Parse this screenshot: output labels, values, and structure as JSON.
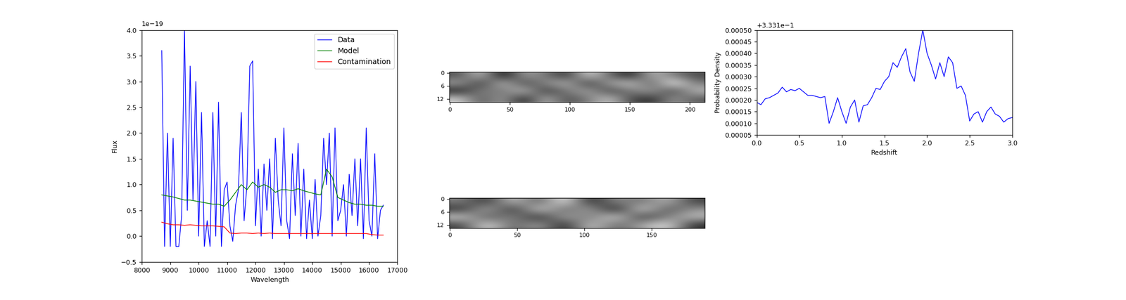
{
  "chart_data": [
    {
      "type": "line",
      "x_label": "Wavelength",
      "y_label": "Flux",
      "annotations": [
        "1e−19"
      ],
      "legend": "upper right",
      "xlim": [
        8000,
        17000
      ],
      "xticks": [
        8000,
        9000,
        10000,
        11000,
        12000,
        13000,
        14000,
        15000,
        16000,
        17000
      ],
      "ylim": [
        -0.5,
        4.0
      ],
      "yticks": [
        {
          "value": -0.5,
          "label": "−0.5"
        },
        0.0,
        0.5,
        1.0,
        1.5,
        2.0,
        2.5,
        3.0,
        3.5,
        4.0
      ],
      "series": [
        {
          "name": "Data",
          "color": "#0000ff",
          "x": [
            8700,
            8800,
            8900,
            9000,
            9100,
            9200,
            9300,
            9400,
            9500,
            9600,
            9700,
            9800,
            9900,
            10000,
            10100,
            10200,
            10300,
            10400,
            10500,
            10600,
            10700,
            10800,
            10900,
            11000,
            11100,
            11200,
            11300,
            11400,
            11500,
            11600,
            11700,
            11800,
            11900,
            12000,
            12100,
            12200,
            12300,
            12400,
            12500,
            12600,
            12700,
            12800,
            12900,
            13000,
            13100,
            13200,
            13300,
            13400,
            13500,
            13600,
            13700,
            13800,
            13900,
            14000,
            14100,
            14200,
            14300,
            14400,
            14500,
            14600,
            14700,
            14800,
            14900,
            15000,
            15100,
            15200,
            15300,
            15400,
            15500,
            15600,
            15700,
            15800,
            15900,
            16000,
            16100,
            16200,
            16300,
            16400,
            16500
          ],
          "values": [
            3.6,
            -0.2,
            2.0,
            -0.2,
            1.9,
            -0.2,
            -0.2,
            0.4,
            4.0,
            0.5,
            3.3,
            0.7,
            3.0,
            0.0,
            2.4,
            -0.2,
            0.3,
            -0.2,
            2.4,
            0.0,
            2.6,
            -0.2,
            0.9,
            1.05,
            0.2,
            -0.1,
            0.6,
            0.9,
            2.4,
            0.3,
            1.0,
            3.3,
            3.4,
            0.2,
            1.3,
            0.0,
            1.4,
            0.5,
            1.5,
            -0.05,
            1.9,
            0.7,
            0.2,
            2.1,
            0.3,
            -0.05,
            1.6,
            0.4,
            1.8,
            0.0,
            1.3,
            -0.05,
            0.7,
            -0.05,
            1.1,
            0.0,
            0.4,
            1.9,
            1.0,
            2.0,
            0.0,
            2.1,
            0.3,
            0.5,
            1.0,
            0.0,
            1.2,
            0.4,
            1.5,
            0.2,
            1.5,
            -0.05,
            2.1,
            0.3,
            0.0,
            1.6,
            -0.05,
            0.5,
            0.6
          ]
        },
        {
          "name": "Model",
          "color": "#008000",
          "x": [
            8700,
            8900,
            9100,
            9300,
            9500,
            9700,
            9900,
            10100,
            10300,
            10500,
            10700,
            10900,
            11100,
            11300,
            11500,
            11700,
            11900,
            12100,
            12300,
            12500,
            12700,
            12900,
            13100,
            13300,
            13500,
            13700,
            13900,
            14100,
            14300,
            14500,
            14700,
            14900,
            15100,
            15300,
            15500,
            15700,
            15900,
            16100,
            16300,
            16500
          ],
          "values": [
            0.8,
            0.78,
            0.76,
            0.73,
            0.7,
            0.7,
            0.68,
            0.66,
            0.64,
            0.62,
            0.62,
            0.58,
            0.7,
            0.85,
            1.0,
            0.9,
            1.05,
            0.95,
            1.0,
            0.95,
            0.85,
            0.9,
            0.9,
            0.88,
            0.92,
            0.88,
            0.85,
            0.82,
            0.8,
            1.3,
            1.15,
            0.75,
            0.7,
            0.65,
            0.62,
            0.62,
            0.6,
            0.6,
            0.58,
            0.58
          ]
        },
        {
          "name": "Contamination",
          "color": "#ff0000",
          "x": [
            8700,
            8900,
            9100,
            9300,
            9500,
            9700,
            9900,
            10100,
            10300,
            10500,
            10700,
            10900,
            11100,
            11300,
            11500,
            11700,
            11900,
            12100,
            12300,
            12500,
            12700,
            12900,
            13100,
            13300,
            13500,
            13700,
            13900,
            14100,
            14300,
            14500,
            14700,
            14900,
            15100,
            15300,
            15500,
            15700,
            15900,
            16100,
            16300,
            16500
          ],
          "values": [
            0.27,
            0.24,
            0.22,
            0.22,
            0.21,
            0.22,
            0.21,
            0.2,
            0.2,
            0.2,
            0.19,
            0.18,
            0.06,
            0.05,
            0.06,
            0.06,
            0.05,
            0.06,
            0.05,
            0.06,
            0.05,
            0.05,
            0.05,
            0.05,
            0.05,
            0.05,
            0.05,
            0.05,
            0.05,
            0.05,
            0.05,
            0.05,
            0.05,
            0.05,
            0.05,
            0.05,
            0.05,
            0.03,
            0.02,
            0.02
          ]
        }
      ]
    },
    {
      "type": "image",
      "xlim": [
        -0.5,
        212.5
      ],
      "xticks": [
        0,
        50,
        100,
        150,
        200
      ],
      "ylim": [
        13.5,
        -0.5
      ],
      "yticks": [
        0,
        6,
        12
      ],
      "cells": [
        [
          0.45,
          0.6,
          0.35,
          0.55,
          0.5,
          0.4,
          0.62,
          0.48,
          0.38,
          0.58,
          0.5,
          0.44
        ],
        [
          0.55,
          0.4,
          0.6,
          0.42,
          0.52,
          0.58,
          0.4,
          0.55,
          0.6,
          0.45,
          0.66,
          0.5
        ],
        [
          0.38,
          0.52,
          0.48,
          0.6,
          0.4,
          0.5,
          0.56,
          0.42,
          0.5,
          0.55,
          0.42,
          0.58
        ],
        [
          0.6,
          0.45,
          0.55,
          0.38,
          0.58,
          0.44,
          0.5,
          0.6,
          0.44,
          0.4,
          0.54,
          0.46
        ]
      ]
    },
    {
      "type": "image",
      "xlim": [
        -0.5,
        189.5
      ],
      "xticks": [
        0,
        50,
        100,
        150
      ],
      "ylim": [
        13.5,
        -0.5
      ],
      "yticks": [
        0,
        6,
        12
      ],
      "cells": [
        [
          0.5,
          0.42,
          0.58,
          0.45,
          0.62,
          0.4,
          0.52,
          0.48,
          0.56,
          0.44
        ],
        [
          0.42,
          0.56,
          0.4,
          0.6,
          0.46,
          0.55,
          0.38,
          0.6,
          0.45,
          0.52
        ],
        [
          0.58,
          0.45,
          0.52,
          0.4,
          0.55,
          0.48,
          0.6,
          0.42,
          0.5,
          0.56
        ],
        [
          0.44,
          0.6,
          0.46,
          0.54,
          0.4,
          0.58,
          0.47,
          0.53,
          0.6,
          0.42
        ]
      ]
    },
    {
      "type": "line",
      "x_label": "Redshift",
      "y_label": "Probability Density",
      "annotations": [
        "+3.331e−1"
      ],
      "xlim": [
        0.0,
        3.0
      ],
      "xticks": [
        {
          "value": 0.0,
          "label": "0.0"
        },
        0.5,
        1.0,
        1.5,
        2.0,
        2.5,
        3.0
      ],
      "ylim": [
        5e-05,
        0.0005
      ],
      "yticks": [
        {
          "value": 5e-05,
          "label": "0.00005"
        },
        {
          "value": 0.0001,
          "label": "0.00010"
        },
        {
          "value": 0.00015,
          "label": "0.00015"
        },
        {
          "value": 0.0002,
          "label": "0.00020"
        },
        {
          "value": 0.00025,
          "label": "0.00025"
        },
        {
          "value": 0.0003,
          "label": "0.00030"
        },
        {
          "value": 0.00035,
          "label": "0.00035"
        },
        {
          "value": 0.0004,
          "label": "0.00040"
        },
        {
          "value": 0.00045,
          "label": "0.00045"
        },
        {
          "value": 0.0005,
          "label": "0.00050"
        }
      ],
      "series": [
        {
          "color": "#0000ff",
          "x": [
            0.0,
            0.05,
            0.1,
            0.15,
            0.2,
            0.25,
            0.3,
            0.35,
            0.4,
            0.45,
            0.5,
            0.55,
            0.6,
            0.65,
            0.7,
            0.75,
            0.8,
            0.85,
            0.9,
            0.95,
            1.0,
            1.05,
            1.1,
            1.15,
            1.2,
            1.25,
            1.3,
            1.35,
            1.4,
            1.45,
            1.5,
            1.55,
            1.6,
            1.65,
            1.7,
            1.75,
            1.8,
            1.85,
            1.9,
            1.95,
            2.0,
            2.05,
            2.1,
            2.15,
            2.2,
            2.25,
            2.3,
            2.35,
            2.4,
            2.45,
            2.5,
            2.55,
            2.6,
            2.65,
            2.7,
            2.75,
            2.8,
            2.85,
            2.9,
            2.95,
            3.0
          ],
          "values": [
            0.00019,
            0.00018,
            0.000205,
            0.00021,
            0.00022,
            0.00023,
            0.000255,
            0.000235,
            0.000245,
            0.00024,
            0.00025,
            0.000235,
            0.00022,
            0.00022,
            0.000215,
            0.00021,
            0.000215,
            0.0001,
            0.00015,
            0.00021,
            0.00015,
            0.0001,
            0.00017,
            0.0002,
            0.000105,
            0.000175,
            0.00018,
            0.00021,
            0.00025,
            0.000245,
            0.00028,
            0.0003,
            0.00036,
            0.00034,
            0.000385,
            0.00042,
            0.00032,
            0.00028,
            0.0004,
            0.0005,
            0.0004,
            0.00035,
            0.00029,
            0.00036,
            0.0003,
            0.000385,
            0.00036,
            0.00025,
            0.00026,
            0.00022,
            0.00011,
            0.00014,
            0.00015,
            0.000105,
            0.00015,
            0.00017,
            0.00014,
            0.00013,
            0.000105,
            0.00012,
            0.000125
          ]
        }
      ]
    }
  ]
}
